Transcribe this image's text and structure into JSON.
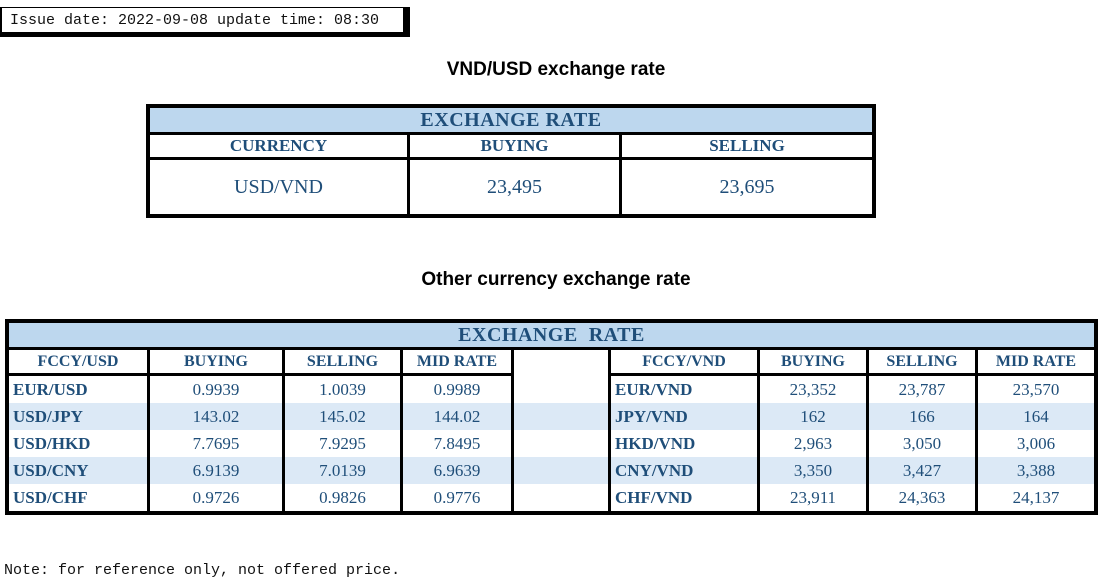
{
  "meta": {
    "issue_line": "Issue date: 2022-09-08 update time: 08:30",
    "note": "Note: for reference only, not offered price."
  },
  "colors": {
    "navy": "#1F4E79",
    "banner": "#BDD7EE",
    "stripe": "#DCE9F6",
    "line": "#000000"
  },
  "usd_table": {
    "title": "VND/USD exchange rate",
    "banner": "EXCHANGE RATE",
    "headers": [
      "CURRENCY",
      "BUYING",
      "SELLING"
    ],
    "rows": [
      [
        "USD/VND",
        "23,495",
        "23,695"
      ]
    ]
  },
  "other_table": {
    "title": "Other currency exchange rate",
    "banner": "EXCHANGE  RATE",
    "left": {
      "headers": [
        "FCCY/USD",
        "BUYING",
        "SELLING",
        "MID RATE"
      ],
      "rows": [
        [
          "EUR/USD",
          "0.9939",
          "1.0039",
          "0.9989"
        ],
        [
          "USD/JPY",
          "143.02",
          "145.02",
          "144.02"
        ],
        [
          "USD/HKD",
          "7.7695",
          "7.9295",
          "7.8495"
        ],
        [
          "USD/CNY",
          "6.9139",
          "7.0139",
          "6.9639"
        ],
        [
          "USD/CHF",
          "0.9726",
          "0.9826",
          "0.9776"
        ]
      ]
    },
    "right": {
      "headers": [
        "FCCY/VND",
        "BUYING",
        "SELLING",
        "MID RATE"
      ],
      "rows": [
        [
          "EUR/VND",
          "23,352",
          "23,787",
          "23,570"
        ],
        [
          "JPY/VND",
          "162",
          "166",
          "164"
        ],
        [
          "HKD/VND",
          "2,963",
          "3,050",
          "3,006"
        ],
        [
          "CNY/VND",
          "3,350",
          "3,427",
          "3,388"
        ],
        [
          "CHF/VND",
          "23,911",
          "24,363",
          "24,137"
        ]
      ]
    }
  }
}
